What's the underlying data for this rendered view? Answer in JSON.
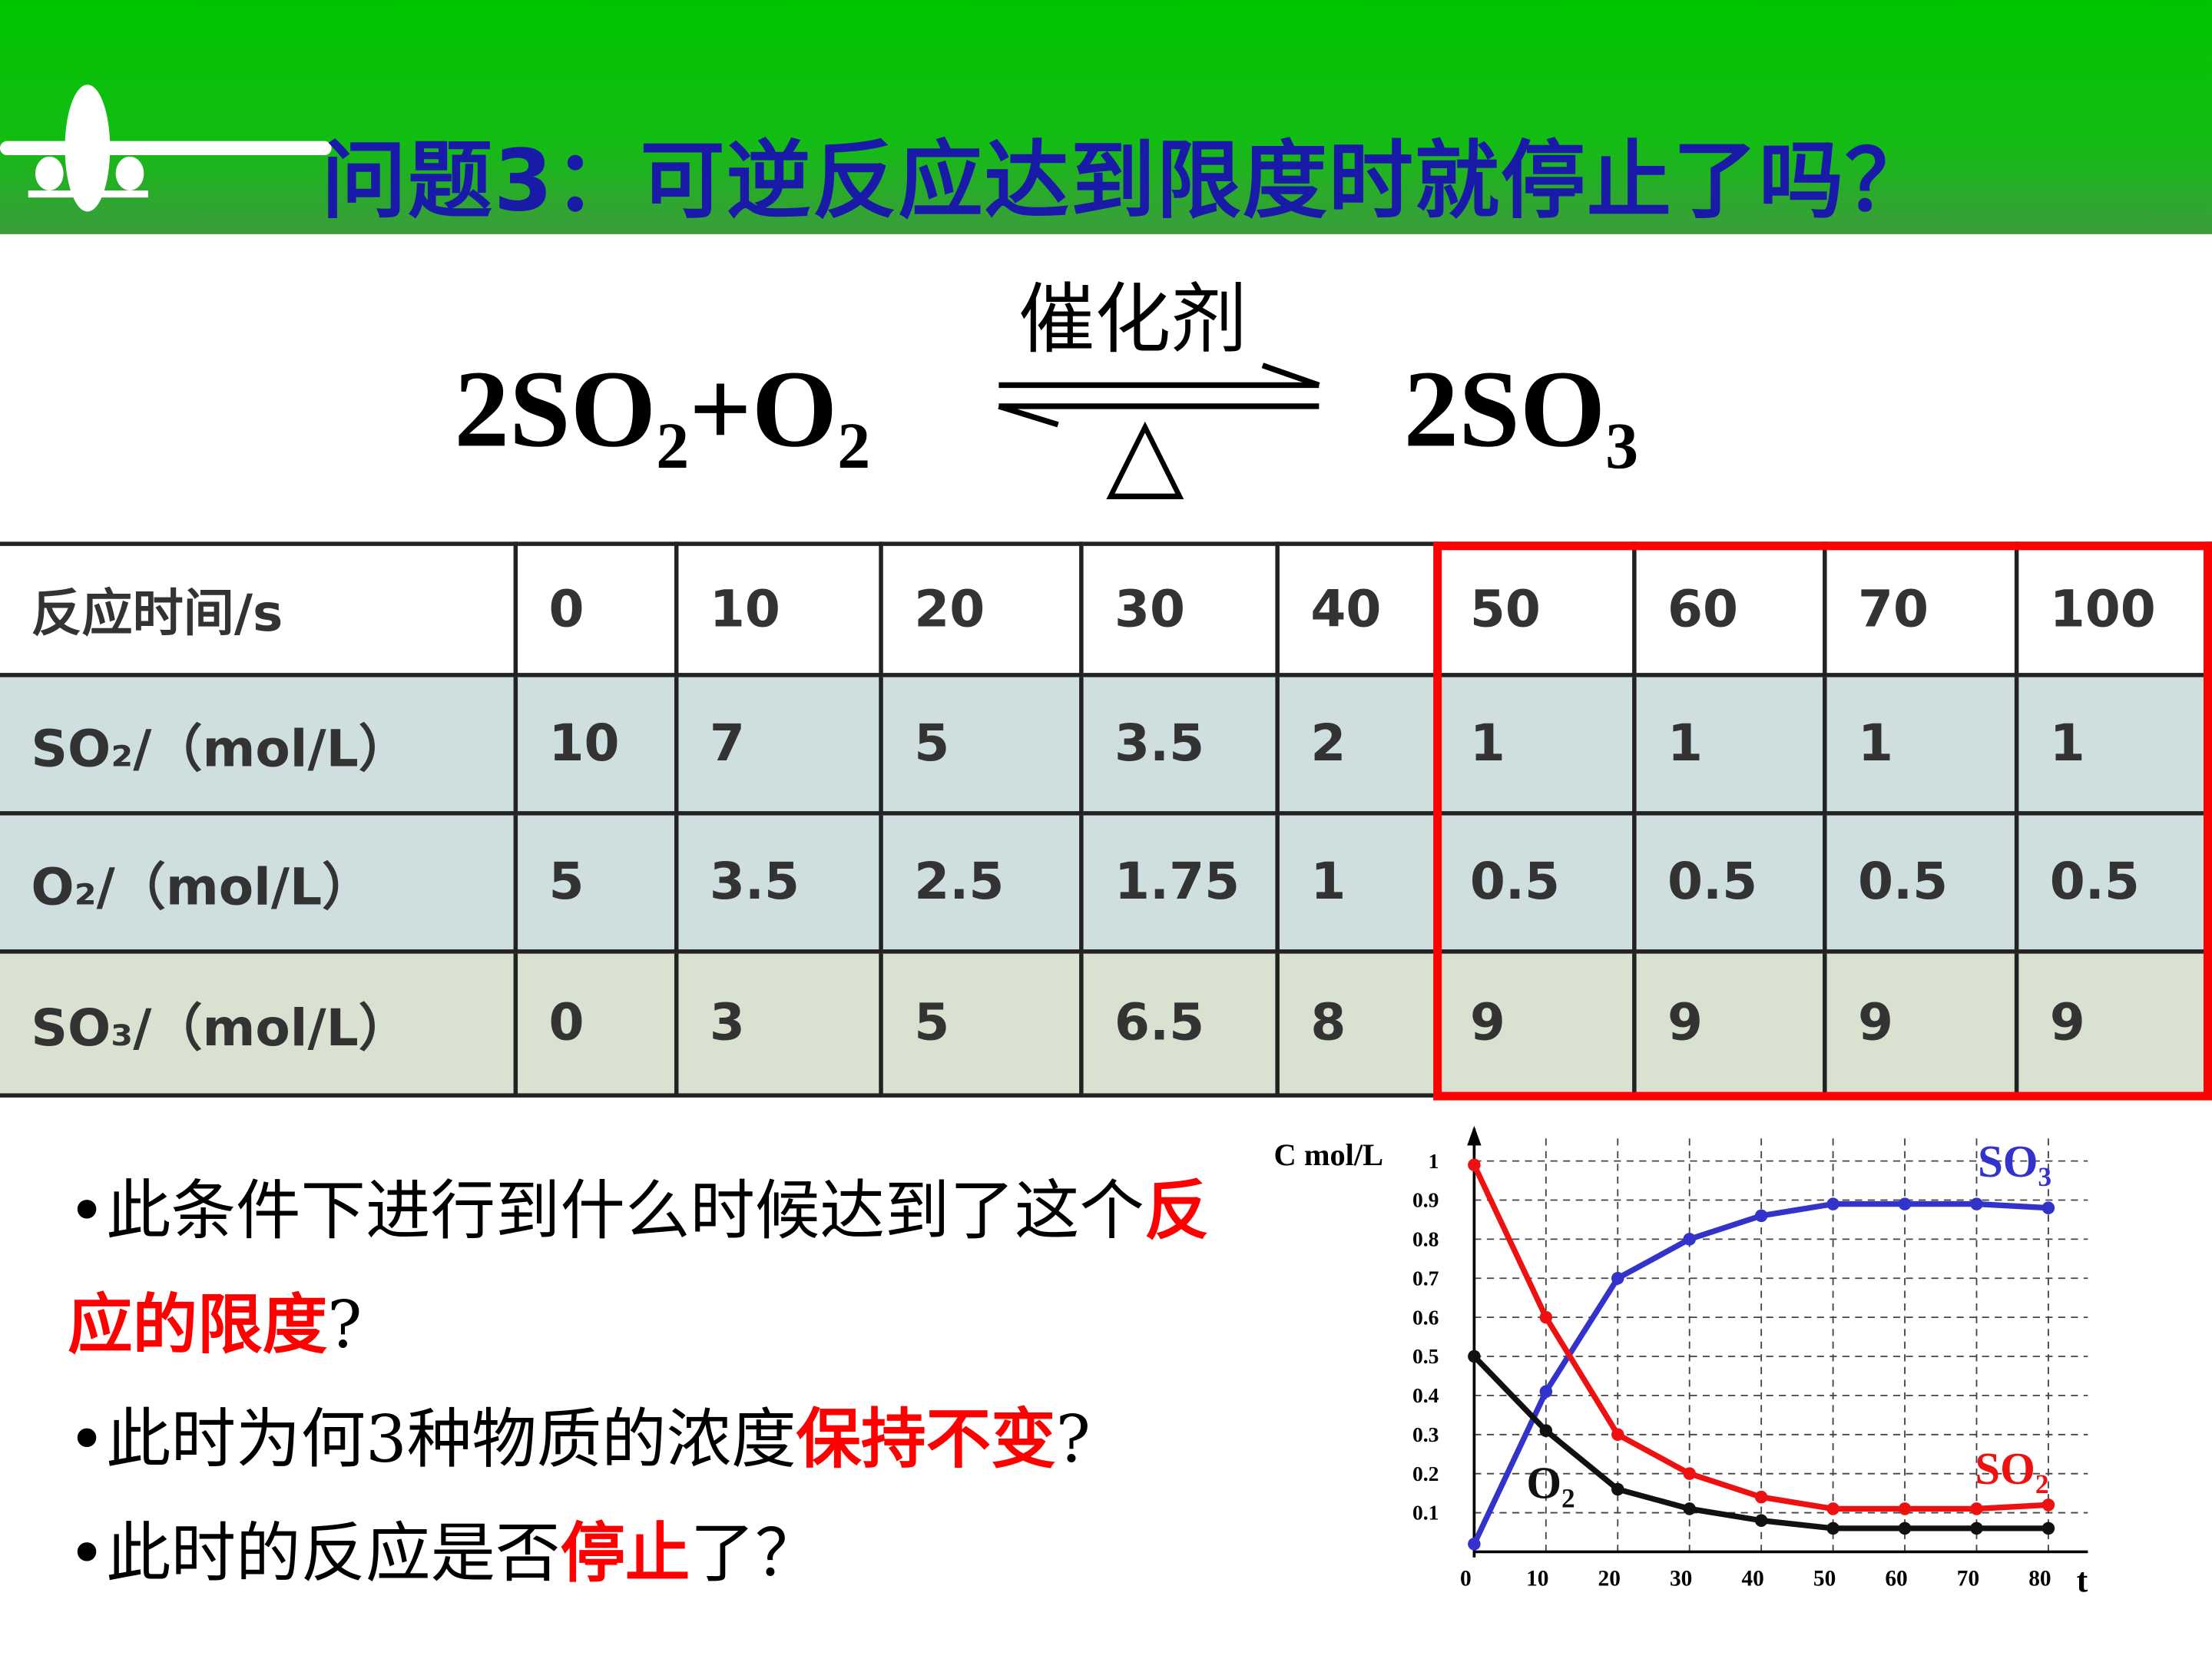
{
  "header": {
    "title": "问题3：可逆反应达到限度时就停止了吗？"
  },
  "equation": {
    "reactants": "2SO₂+O₂",
    "products": "2SO₃",
    "catalyst": "催化剂",
    "condition": "△"
  },
  "table": {
    "rows": [
      [
        "反应时间/s",
        "0",
        "10",
        "20",
        "30",
        "40",
        "50",
        "60",
        "70",
        "100"
      ],
      [
        "SO₂/（mol/L）",
        "10",
        "7",
        "5",
        "3.5",
        "2",
        "1",
        "1",
        "1",
        "1"
      ],
      [
        "O₂/（mol/L）",
        "5",
        "3.5",
        "2.5",
        "1.75",
        "1",
        "0.5",
        "0.5",
        "0.5",
        "0.5"
      ],
      [
        "SO₃/（mol/L）",
        "0",
        "3",
        "5",
        "6.5",
        "8",
        "9",
        "9",
        "9",
        "9"
      ]
    ]
  },
  "bullets": [
    [
      {
        "text": "•此条件下进行到什么时候达到了这个"
      },
      {
        "text": "反应的限度",
        "emphasis": true
      },
      {
        "text": "?"
      }
    ],
    [
      {
        "text": "•此时为何3种物质的浓度"
      },
      {
        "text": "保持不变",
        "emphasis": true
      },
      {
        "text": "?"
      }
    ],
    [
      {
        "text": "•此时的反应是否"
      },
      {
        "text": "停止",
        "emphasis": true
      },
      {
        "text": "了？"
      }
    ]
  ],
  "chart_data": {
    "type": "line",
    "y_label": "C mol/L",
    "x_label": "t",
    "x": [
      0,
      10,
      20,
      30,
      40,
      50,
      60,
      70,
      80
    ],
    "series": [
      {
        "name": "SO₃",
        "color": "#3333cc",
        "values": [
          0.02,
          0.41,
          0.7,
          0.8,
          0.86,
          0.89,
          0.89,
          0.89,
          0.88
        ]
      },
      {
        "name": "SO₂",
        "color": "#ee1111",
        "values": [
          0.99,
          0.6,
          0.3,
          0.2,
          0.14,
          0.11,
          0.11,
          0.11,
          0.12
        ]
      },
      {
        "name": "O₂",
        "color": "#111111",
        "values": [
          0.5,
          0.31,
          0.16,
          0.11,
          0.08,
          0.06,
          0.06,
          0.06,
          0.06
        ]
      }
    ],
    "xlim": [
      0,
      80
    ],
    "ylim": [
      0,
      1
    ],
    "xticks": [
      0,
      10,
      20,
      30,
      40,
      50,
      60,
      70,
      80
    ],
    "yticks": [
      0.1,
      0.2,
      0.3,
      0.4,
      0.5,
      0.6,
      0.7,
      0.8,
      0.9,
      1
    ],
    "grid": true
  }
}
